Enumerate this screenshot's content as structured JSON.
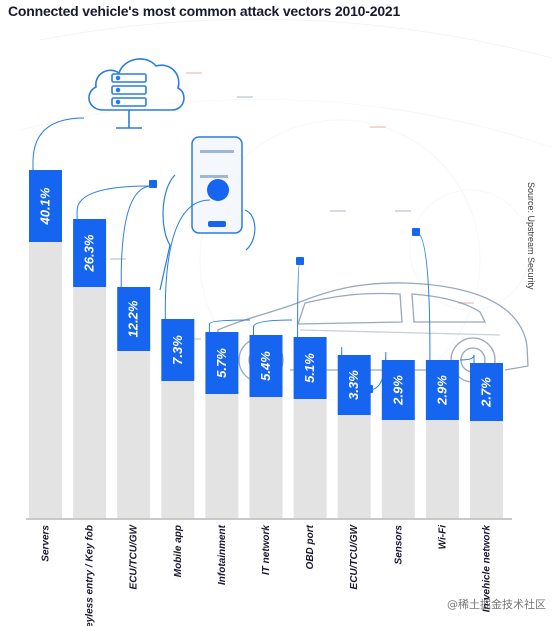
{
  "chart_data": {
    "type": "bar",
    "title": "Connected vehicle's most common attack vectors 2010-2021",
    "source": "Source: Upstream Security",
    "categories": [
      "Servers",
      "Keyless entry / Key fob",
      "ECU/TCU/GW",
      "Mobile app",
      "Infotainment",
      "IT network",
      "OBD port",
      "ECU/TCU/GW",
      "Sensors",
      "Wi-Fi",
      "In-vehicle network"
    ],
    "values": [
      40.1,
      26.3,
      12.2,
      7.3,
      5.7,
      5.4,
      5.1,
      3.3,
      2.9,
      2.9,
      2.7
    ],
    "value_labels": [
      "40.1%",
      "26.3%",
      "12.2%",
      "7.3%",
      "5.7%",
      "5.4%",
      "5.1%",
      "3.3%",
      "2.9%",
      "2.9%",
      "2.7%"
    ],
    "colors": {
      "value_block": "#1565f0",
      "bar_body": "#e3e3e3",
      "accent_line": "#2a7de1",
      "baseline": "#c9c9c9"
    }
  },
  "watermark": "@稀土掘金技术社区"
}
